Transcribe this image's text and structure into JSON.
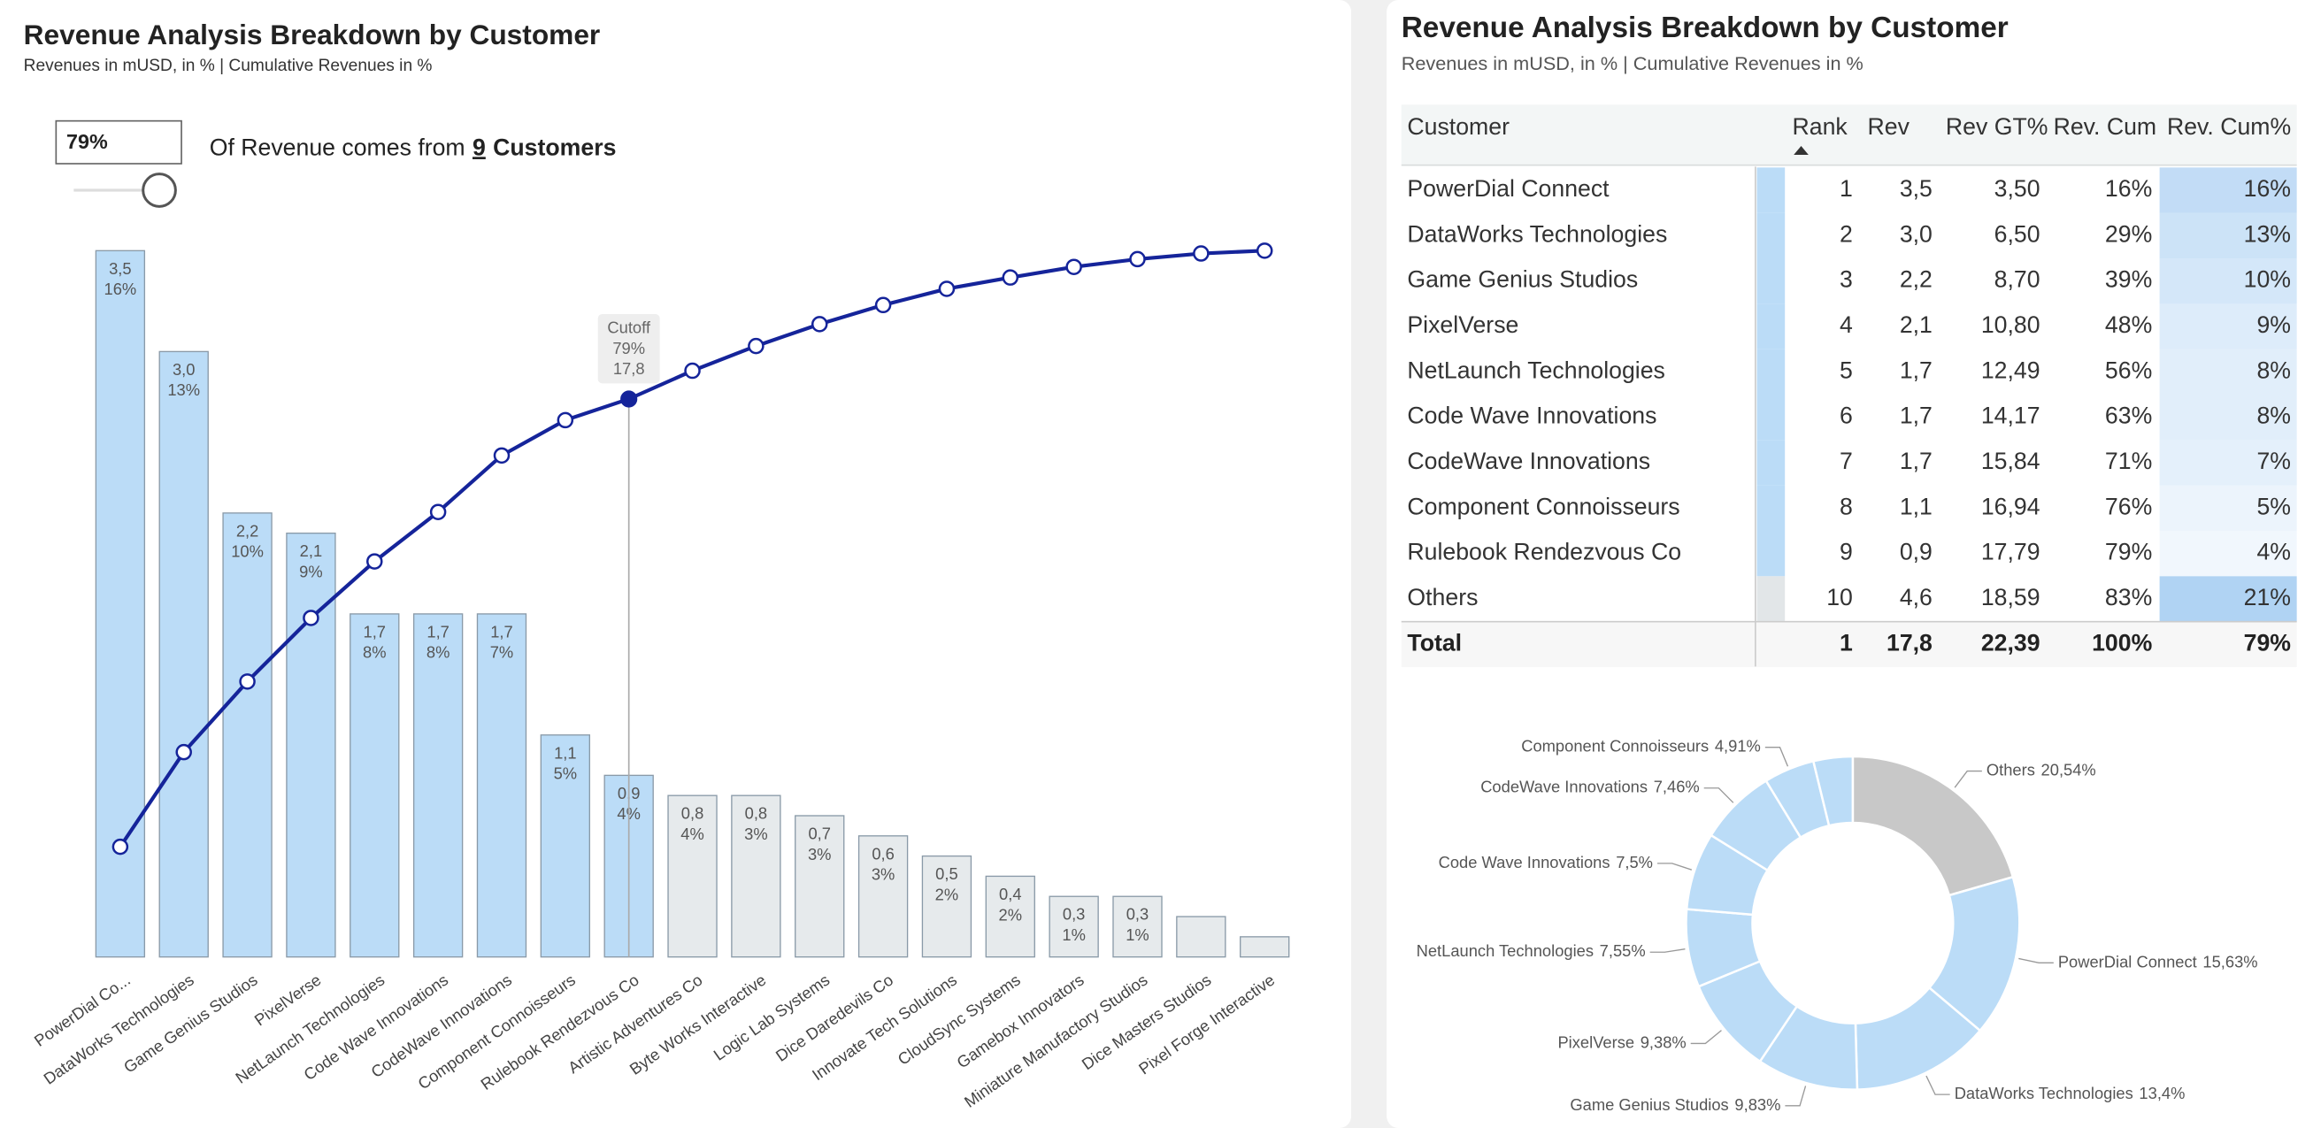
{
  "chart_data": [
    {
      "type": "pareto",
      "title": "Revenue Analysis Breakdown by Customer",
      "subtitle": "Revenues in mUSD, in % | Cumulative Revenues in %",
      "categories": [
        "PowerDial Co...",
        "DataWorks Technologies",
        "Game Genius Studios",
        "PixelVerse",
        "NetLaunch Technologies",
        "Code Wave Innovations",
        "CodeWave Innovations",
        "Component Connoisseurs",
        "Rulebook Rendezvous Co",
        "Artistic Adventures Co",
        "Byte Works Interactive",
        "Logic Lab Systems",
        "Dice Daredevils Co",
        "Innovate Tech Solutions",
        "CloudSync Systems",
        "Gamebox Innovators",
        "Miniature Manufactory Studios",
        "Dice Masters Studios",
        "Pixel Forge Interactive"
      ],
      "values": [
        3.5,
        3.0,
        2.2,
        2.1,
        1.7,
        1.7,
        1.7,
        1.1,
        0.9,
        0.8,
        0.8,
        0.7,
        0.6,
        0.5,
        0.4,
        0.3,
        0.3,
        0.2,
        0.1
      ],
      "value_labels": [
        "3,5",
        "3,0",
        "2,2",
        "2,1",
        "1,7",
        "1,7",
        "1,7",
        "1,1",
        "0,9",
        "0,8",
        "0,8",
        "0,7",
        "0,6",
        "0,5",
        "0,4",
        "0,3",
        "0,3",
        null,
        null
      ],
      "share_values": [
        16,
        13,
        10,
        9,
        8,
        8,
        7,
        5,
        4,
        4,
        3,
        3,
        3,
        2,
        2,
        1,
        1,
        null,
        null
      ],
      "share_labels": [
        "16%",
        "13%",
        "10%",
        "9%",
        "8%",
        "8%",
        "7%",
        "5%",
        "4%",
        "4%",
        "3%",
        "3%",
        "3%",
        "2%",
        "2%",
        "1%",
        "1%",
        null,
        null
      ],
      "colors": [
        "#bbdcf7",
        "#bbdcf7",
        "#bbdcf7",
        "#bbdcf7",
        "#bbdcf7",
        "#bbdcf7",
        "#bbdcf7",
        "#bbdcf7",
        "#bbdcf7",
        "#e6eaec",
        "#e6eaec",
        "#e6eaec",
        "#e6eaec",
        "#e6eaec",
        "#e6eaec",
        "#e6eaec",
        "#e6eaec",
        "#e6eaec",
        "#e6eaec"
      ],
      "line": {
        "axis": "y2",
        "color": "#15249a",
        "values": [
          15.6,
          29,
          39,
          48,
          56,
          63,
          71,
          76,
          79,
          83,
          86.5,
          89.6,
          92.3,
          94.6,
          96.2,
          97.7,
          98.8,
          99.6,
          100
        ]
      },
      "ylim": [
        0,
        3.5
      ],
      "y2lim": [
        0,
        100
      ],
      "annotation": {
        "category": "Rulebook Rendezvous Co",
        "lines": [
          "Cutoff",
          "79%",
          "17,8"
        ]
      },
      "slider": {
        "value_label": "79%",
        "text": "Of Revenue comes from",
        "count": "9",
        "unit": "Customers"
      }
    },
    {
      "type": "donut",
      "categories": [
        "Others",
        "PowerDial Connect",
        "DataWorks Technologies",
        "Game Genius Studios",
        "PixelVerse",
        "NetLaunch Technologies",
        "Code Wave Innovations",
        "CodeWave Innovations",
        "Component Connoisseurs",
        null
      ],
      "values": [
        20.54,
        15.63,
        13.4,
        9.83,
        9.38,
        7.55,
        7.5,
        7.46,
        4.91,
        3.8
      ],
      "value_labels": [
        "20,54%",
        "15,63%",
        "13,4%",
        "9,83%",
        "9,38%",
        "7,55%",
        "7,5%",
        "7,46%",
        "4,91%",
        null
      ],
      "colors": [
        "#c8c8c8",
        "#bbdcf7",
        "#bbdcf7",
        "#bbdcf7",
        "#bbdcf7",
        "#bbdcf7",
        "#bbdcf7",
        "#bbdcf7",
        "#bbdcf7",
        "#bbdcf7"
      ]
    }
  ],
  "right_panel": {
    "title": "Revenue Analysis Breakdown by Customer",
    "subtitle": "Revenues in mUSD, in % | Cumulative Revenues in %",
    "table": {
      "columns": [
        "Customer",
        "Rank",
        "Rev",
        "Rev GT%",
        "Rev. Cum",
        "Rev. Cum%"
      ],
      "rows": [
        [
          "PowerDial Connect",
          "1",
          "3,5",
          "3,50",
          "16%",
          "16%"
        ],
        [
          "DataWorks Technologies",
          "2",
          "3,0",
          "6,50",
          "29%",
          "13%"
        ],
        [
          "Game Genius Studios",
          "3",
          "2,2",
          "8,70",
          "39%",
          "10%"
        ],
        [
          "PixelVerse",
          "4",
          "2,1",
          "10,80",
          "48%",
          "9%"
        ],
        [
          "NetLaunch Technologies",
          "5",
          "1,7",
          "12,49",
          "56%",
          "8%"
        ],
        [
          "Code Wave Innovations",
          "6",
          "1,7",
          "14,17",
          "63%",
          "8%"
        ],
        [
          "CodeWave Innovations",
          "7",
          "1,7",
          "15,84",
          "71%",
          "7%"
        ],
        [
          "Component Connoisseurs",
          "8",
          "1,1",
          "16,94",
          "76%",
          "5%"
        ],
        [
          "Rulebook Rendezvous Co",
          "9",
          "0,9",
          "17,79",
          "79%",
          "4%"
        ],
        [
          "Others",
          "10",
          "4,6",
          "18,59",
          "83%",
          "21%"
        ]
      ],
      "total": [
        "Total",
        "1",
        "17,8",
        "22,39",
        "100%",
        "79%"
      ]
    }
  }
}
